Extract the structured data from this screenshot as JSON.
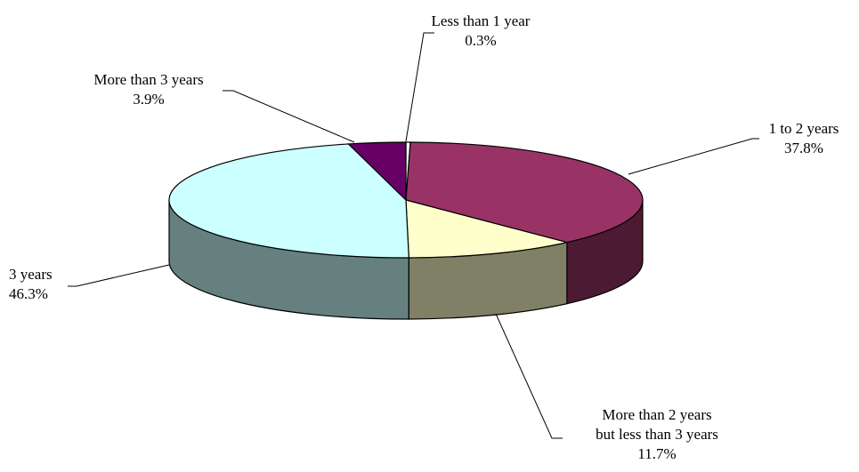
{
  "chart_data": {
    "type": "pie",
    "title": "",
    "three_d": true,
    "slices": [
      {
        "name": "Less than 1 year",
        "value": 0.3,
        "label_lines": [
          "Less than 1 year"
        ],
        "value_label": "0.3%",
        "top_color": "#ffffff",
        "side_color": "#bfbfbf"
      },
      {
        "name": "1 to 2 years",
        "value": 37.8,
        "label_lines": [
          "1 to 2 years"
        ],
        "value_label": "37.8%",
        "top_color": "#993366",
        "side_color": "#4d1a33"
      },
      {
        "name": "More than 2 years but less than 3 years",
        "value": 11.7,
        "label_lines": [
          "More than 2 years",
          "but less than 3 years"
        ],
        "value_label": "11.7%",
        "top_color": "#ffffcc",
        "side_color": "#808066"
      },
      {
        "name": "3 years",
        "value": 46.3,
        "label_lines": [
          "3 years"
        ],
        "value_label": "46.3%",
        "top_color": "#ccffff",
        "side_color": "#668080"
      },
      {
        "name": "More than 3 years",
        "value": 3.9,
        "label_lines": [
          "More than 3 years"
        ],
        "value_label": "3.9%",
        "top_color": "#660066",
        "side_color": "#330033"
      }
    ],
    "legend": "none"
  }
}
